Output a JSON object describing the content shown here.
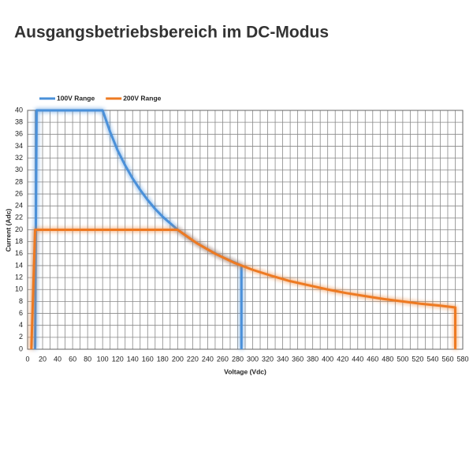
{
  "chart_data": {
    "type": "line",
    "title": "Ausgangsbetriebsbereich im DC-Modus",
    "x_label": "Voltage (Vdc)",
    "y_label": "Current (Adc)",
    "xlim": [
      0,
      580
    ],
    "ylim": [
      0,
      40
    ],
    "xticks": [
      0,
      20,
      40,
      60,
      80,
      100,
      120,
      140,
      160,
      180,
      200,
      220,
      240,
      260,
      280,
      300,
      320,
      340,
      360,
      380,
      400,
      420,
      440,
      460,
      480,
      500,
      520,
      540,
      560,
      580
    ],
    "yticks": [
      0,
      2,
      4,
      6,
      8,
      10,
      12,
      14,
      16,
      18,
      20,
      22,
      24,
      26,
      28,
      30,
      32,
      34,
      36,
      38,
      40
    ],
    "grid": true,
    "legend": "top-left",
    "series": [
      {
        "name": "100V Range",
        "color": "#4a90d9",
        "x": [
          10,
          12,
          100,
          110,
          120,
          130,
          140,
          150,
          160,
          170,
          180,
          190,
          200,
          220,
          240,
          260,
          280,
          285,
          285
        ],
        "values": [
          0,
          40,
          40,
          36.4,
          33.3,
          30.8,
          28.6,
          26.7,
          25,
          23.5,
          22.2,
          21.1,
          20,
          18.2,
          16.7,
          15.4,
          14.3,
          14,
          0
        ]
      },
      {
        "name": "200V Range",
        "color": "#ee7a22",
        "x": [
          5,
          10,
          200,
          225,
          250,
          275,
          300,
          325,
          350,
          375,
          400,
          425,
          450,
          475,
          500,
          525,
          550,
          570,
          570
        ],
        "values": [
          0,
          20,
          20,
          17.8,
          16,
          14.5,
          13.3,
          12.3,
          11.4,
          10.7,
          10,
          9.4,
          8.9,
          8.4,
          8,
          7.6,
          7.3,
          7,
          0
        ]
      }
    ]
  }
}
